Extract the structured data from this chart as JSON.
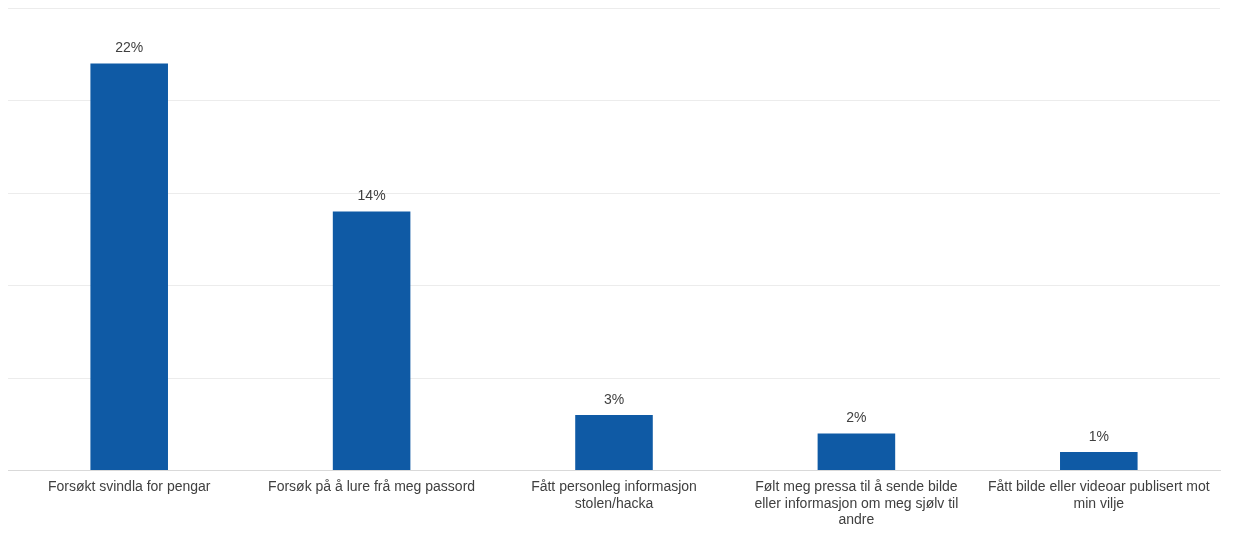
{
  "chart_data": {
    "type": "bar",
    "categories": [
      "Forsøkt svindla for pengar",
      "Forsøk på å lure frå meg passord",
      "Fått personleg informasjon stolen/hacka",
      "Følt meg pressa til å sende bilde eller informasjon om meg sjølv til andre",
      "Fått bilde eller videoar publisert mot min vilje"
    ],
    "values": [
      22,
      14,
      3,
      2,
      1
    ],
    "value_labels": [
      "22%",
      "14%",
      "3%",
      "2%",
      "1%"
    ],
    "color": "#0f5aa5",
    "ylim": [
      0,
      25
    ],
    "yticks": [
      {
        "value": 0,
        "label": null
      },
      {
        "value": 5,
        "label": null
      },
      {
        "value": 10,
        "label": null
      },
      {
        "value": 15,
        "label": null
      },
      {
        "value": 20,
        "label": null
      },
      {
        "value": 25,
        "label": null
      }
    ],
    "tick_labels": "x",
    "grid": "y",
    "legend": false
  }
}
